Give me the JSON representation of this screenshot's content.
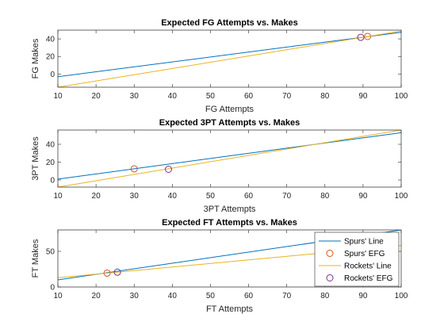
{
  "chart_data": [
    {
      "type": "line",
      "title": "Expected FG Attempts vs. Makes",
      "xlabel": "FG Attempts",
      "ylabel": "FG Makes",
      "xlim": [
        10,
        100
      ],
      "ylim": [
        -15,
        50
      ],
      "xticks": [
        10,
        20,
        30,
        40,
        50,
        60,
        70,
        80,
        90,
        100
      ],
      "yticks": [
        0,
        20,
        40
      ],
      "series": [
        {
          "name": "Spurs' Line",
          "kind": "line",
          "color": "#0072BD",
          "x": [
            10,
            100
          ],
          "y": [
            -3,
            47.5
          ]
        },
        {
          "name": "Spurs' EFG",
          "kind": "marker",
          "color": "#D95319",
          "x": [
            91.2
          ],
          "y": [
            42.8
          ]
        },
        {
          "name": "Rockets' Line",
          "kind": "line",
          "color": "#EDB120",
          "x": [
            10,
            100
          ],
          "y": [
            -15,
            49
          ]
        },
        {
          "name": "Rockets' EFG",
          "kind": "marker",
          "color": "#7E2F8E",
          "x": [
            89.4
          ],
          "y": [
            41.8
          ]
        }
      ]
    },
    {
      "type": "line",
      "title": "Expected 3PT Attempts vs. Makes",
      "xlabel": "3PT Attempts",
      "ylabel": "3PT Makes",
      "xlim": [
        10,
        100
      ],
      "ylim": [
        -8,
        56
      ],
      "xticks": [
        10,
        20,
        30,
        40,
        50,
        60,
        70,
        80,
        90,
        100
      ],
      "yticks": [
        0,
        20,
        40
      ],
      "series": [
        {
          "name": "Spurs' Line",
          "kind": "line",
          "color": "#0072BD",
          "x": [
            10,
            100
          ],
          "y": [
            1,
            53
          ]
        },
        {
          "name": "Spurs' EFG",
          "kind": "marker",
          "color": "#D95319",
          "x": [
            30
          ],
          "y": [
            12.5
          ]
        },
        {
          "name": "Rockets' Line",
          "kind": "line",
          "color": "#EDB120",
          "x": [
            10,
            100
          ],
          "y": [
            -8,
            56
          ]
        },
        {
          "name": "Rockets' EFG",
          "kind": "marker",
          "color": "#7E2F8E",
          "x": [
            39
          ],
          "y": [
            12
          ]
        }
      ]
    },
    {
      "type": "line",
      "title": "Expected FT Attempts vs. Makes",
      "xlabel": "FT Attempts",
      "ylabel": "FT Makes",
      "xlim": [
        10,
        100
      ],
      "ylim": [
        0,
        80
      ],
      "xticks": [
        10,
        20,
        30,
        40,
        50,
        60,
        70,
        80,
        90,
        100
      ],
      "yticks": [
        0,
        50
      ],
      "legend": {
        "placement": "top-right",
        "entries": [
          "Spurs' Line",
          "Spurs' EFG",
          "Rockets' Line",
          "Rockets' EFG"
        ]
      },
      "series": [
        {
          "name": "Spurs' Line",
          "kind": "line",
          "color": "#0072BD",
          "x": [
            10,
            100
          ],
          "y": [
            10,
            80
          ]
        },
        {
          "name": "Spurs' EFG",
          "kind": "marker",
          "color": "#D95319",
          "x": [
            22.9
          ],
          "y": [
            19.5
          ]
        },
        {
          "name": "Rockets' Line",
          "kind": "line",
          "color": "#EDB120",
          "x": [
            10,
            100
          ],
          "y": [
            13,
            58
          ]
        },
        {
          "name": "Rockets' EFG",
          "kind": "marker",
          "color": "#7E2F8E",
          "x": [
            25.6
          ],
          "y": [
            20.8
          ]
        }
      ]
    }
  ]
}
